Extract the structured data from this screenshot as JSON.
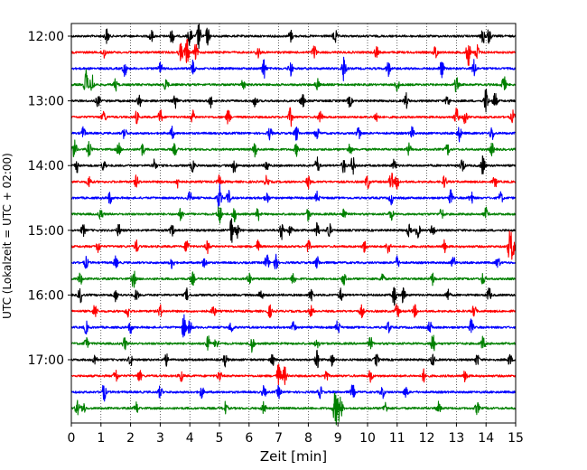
{
  "chart_data": {
    "type": "line",
    "title": "",
    "xlabel": "Zeit  [min]",
    "ylabel": "UTC (Lokalzeit = UTC + 02:00)",
    "xlim": [
      0,
      15
    ],
    "x_ticks": [
      "0",
      "1",
      "2",
      "3",
      "4",
      "5",
      "6",
      "7",
      "8",
      "9",
      "10",
      "11",
      "12",
      "13",
      "14",
      "15"
    ],
    "y_ticks": [
      "12:00",
      "13:00",
      "14:00",
      "15:00",
      "16:00",
      "17:00"
    ],
    "grid_x": true,
    "trace_interval_min": 15,
    "start_time": "12:00",
    "trace_colors": [
      "#000000",
      "#ff0000",
      "#0000ff",
      "#008000"
    ],
    "traces": [
      {
        "time": "12:00",
        "color": "#000000",
        "events": [
          [
            1.2,
            0.5
          ],
          [
            2.7,
            0.4
          ],
          [
            3.4,
            0.5
          ],
          [
            4.0,
            0.6
          ],
          [
            4.3,
            0.9
          ],
          [
            4.6,
            0.6
          ],
          [
            7.4,
            0.4
          ],
          [
            8.9,
            0.5
          ],
          [
            13.9,
            0.5
          ],
          [
            14.1,
            0.5
          ]
        ]
      },
      {
        "time": "12:15",
        "color": "#ff0000",
        "events": [
          [
            1.1,
            0.4
          ],
          [
            3.7,
            0.6
          ],
          [
            3.9,
            1.0
          ],
          [
            4.2,
            0.5
          ],
          [
            6.3,
            0.4
          ],
          [
            8.2,
            0.5
          ],
          [
            10.3,
            0.4
          ],
          [
            12.3,
            0.5
          ],
          [
            13.4,
            0.9
          ],
          [
            13.7,
            0.5
          ]
        ]
      },
      {
        "time": "12:30",
        "color": "#0000ff",
        "events": [
          [
            1.8,
            0.5
          ],
          [
            3.0,
            0.4
          ],
          [
            4.1,
            0.5
          ],
          [
            6.5,
            0.7
          ],
          [
            7.4,
            0.5
          ],
          [
            9.2,
            0.9
          ],
          [
            10.7,
            0.5
          ],
          [
            12.5,
            0.6
          ],
          [
            13.6,
            0.6
          ]
        ]
      },
      {
        "time": "12:45",
        "color": "#008000",
        "events": [
          [
            0.5,
            1.0
          ],
          [
            0.7,
            0.7
          ],
          [
            1.5,
            0.4
          ],
          [
            3.2,
            0.4
          ],
          [
            5.8,
            0.4
          ],
          [
            8.3,
            0.4
          ],
          [
            11.0,
            0.4
          ],
          [
            13.0,
            0.5
          ],
          [
            14.6,
            0.6
          ]
        ]
      },
      {
        "time": "13:00",
        "color": "#000000",
        "events": [
          [
            0.9,
            0.4
          ],
          [
            2.3,
            0.4
          ],
          [
            3.5,
            0.5
          ],
          [
            4.7,
            0.4
          ],
          [
            6.2,
            0.4
          ],
          [
            7.8,
            0.5
          ],
          [
            9.4,
            0.4
          ],
          [
            11.3,
            0.5
          ],
          [
            12.7,
            0.4
          ],
          [
            14.0,
            0.9
          ],
          [
            14.3,
            0.6
          ]
        ]
      },
      {
        "time": "13:15",
        "color": "#ff0000",
        "events": [
          [
            1.1,
            0.4
          ],
          [
            2.2,
            0.4
          ],
          [
            3.0,
            0.5
          ],
          [
            4.1,
            0.4
          ],
          [
            5.3,
            0.5
          ],
          [
            7.4,
            0.6
          ],
          [
            8.4,
            0.5
          ],
          [
            10.3,
            0.4
          ],
          [
            13.0,
            0.6
          ],
          [
            13.3,
            0.5
          ],
          [
            14.9,
            0.4
          ]
        ]
      },
      {
        "time": "13:30",
        "color": "#0000ff",
        "events": [
          [
            0.4,
            0.4
          ],
          [
            1.8,
            0.4
          ],
          [
            3.4,
            0.4
          ],
          [
            6.7,
            0.4
          ],
          [
            7.6,
            0.5
          ],
          [
            8.3,
            0.4
          ],
          [
            9.7,
            0.5
          ],
          [
            11.5,
            0.4
          ],
          [
            13.1,
            0.5
          ],
          [
            14.2,
            0.5
          ]
        ]
      },
      {
        "time": "13:45",
        "color": "#008000",
        "events": [
          [
            0.1,
            0.8
          ],
          [
            0.6,
            0.5
          ],
          [
            1.6,
            0.4
          ],
          [
            2.4,
            0.4
          ],
          [
            3.5,
            0.4
          ],
          [
            6.2,
            0.5
          ],
          [
            7.6,
            0.4
          ],
          [
            9.4,
            0.4
          ],
          [
            11.4,
            0.4
          ],
          [
            12.7,
            0.4
          ],
          [
            14.2,
            0.4
          ]
        ]
      },
      {
        "time": "14:00",
        "color": "#000000",
        "events": [
          [
            0.2,
            0.4
          ],
          [
            1.1,
            0.4
          ],
          [
            2.8,
            0.4
          ],
          [
            4.1,
            0.4
          ],
          [
            5.5,
            0.5
          ],
          [
            6.6,
            0.4
          ],
          [
            8.3,
            0.6
          ],
          [
            9.2,
            0.5
          ],
          [
            9.5,
            0.6
          ],
          [
            10.9,
            0.4
          ],
          [
            13.2,
            0.5
          ],
          [
            13.9,
            0.7
          ]
        ]
      },
      {
        "time": "14:15",
        "color": "#ff0000",
        "events": [
          [
            0.6,
            0.4
          ],
          [
            2.2,
            0.4
          ],
          [
            3.6,
            0.4
          ],
          [
            5.0,
            0.4
          ],
          [
            6.6,
            0.4
          ],
          [
            8.0,
            0.4
          ],
          [
            10.0,
            0.5
          ],
          [
            10.8,
            0.6
          ],
          [
            11.0,
            0.5
          ],
          [
            12.6,
            0.4
          ],
          [
            14.3,
            0.4
          ]
        ]
      },
      {
        "time": "14:30",
        "color": "#0000ff",
        "events": [
          [
            1.3,
            0.4
          ],
          [
            4.0,
            0.4
          ],
          [
            5.0,
            0.9
          ],
          [
            5.3,
            0.5
          ],
          [
            6.6,
            0.4
          ],
          [
            8.3,
            0.4
          ],
          [
            10.8,
            0.4
          ],
          [
            12.8,
            0.5
          ],
          [
            13.5,
            0.4
          ],
          [
            14.5,
            0.4
          ]
        ]
      },
      {
        "time": "14:45",
        "color": "#008000",
        "events": [
          [
            1.0,
            0.4
          ],
          [
            3.7,
            0.4
          ],
          [
            5.0,
            0.7
          ],
          [
            5.5,
            0.5
          ],
          [
            6.3,
            0.4
          ],
          [
            8.0,
            0.4
          ],
          [
            9.2,
            0.4
          ],
          [
            10.8,
            0.4
          ],
          [
            12.5,
            0.4
          ],
          [
            14.0,
            0.4
          ]
        ]
      },
      {
        "time": "15:00",
        "color": "#000000",
        "events": [
          [
            0.4,
            0.4
          ],
          [
            1.6,
            0.4
          ],
          [
            3.4,
            0.4
          ],
          [
            5.4,
            0.9
          ],
          [
            5.6,
            0.5
          ],
          [
            7.1,
            0.6
          ],
          [
            7.4,
            0.4
          ],
          [
            8.3,
            0.5
          ],
          [
            8.7,
            0.6
          ],
          [
            11.4,
            0.4
          ],
          [
            11.7,
            0.5
          ],
          [
            12.2,
            0.4
          ]
        ]
      },
      {
        "time": "15:15",
        "color": "#ff0000",
        "events": [
          [
            0.9,
            0.4
          ],
          [
            2.2,
            0.4
          ],
          [
            3.9,
            0.5
          ],
          [
            4.6,
            0.4
          ],
          [
            6.3,
            0.4
          ],
          [
            8.0,
            0.4
          ],
          [
            9.9,
            0.4
          ],
          [
            10.7,
            0.5
          ],
          [
            12.6,
            0.4
          ],
          [
            14.8,
            1.0
          ],
          [
            14.9,
            0.8
          ]
        ]
      },
      {
        "time": "15:30",
        "color": "#0000ff",
        "events": [
          [
            0.5,
            0.4
          ],
          [
            1.5,
            0.4
          ],
          [
            3.4,
            0.4
          ],
          [
            4.5,
            0.4
          ],
          [
            6.6,
            0.6
          ],
          [
            6.9,
            0.5
          ],
          [
            8.3,
            0.4
          ],
          [
            11.0,
            0.4
          ],
          [
            12.9,
            0.4
          ],
          [
            14.4,
            0.4
          ]
        ]
      },
      {
        "time": "15:45",
        "color": "#008000",
        "events": [
          [
            0.3,
            0.4
          ],
          [
            2.1,
            0.6
          ],
          [
            4.1,
            0.4
          ],
          [
            6.0,
            0.4
          ],
          [
            7.5,
            0.4
          ],
          [
            9.2,
            0.4
          ],
          [
            10.5,
            0.4
          ],
          [
            12.2,
            0.4
          ],
          [
            13.9,
            0.4
          ]
        ]
      },
      {
        "time": "16:00",
        "color": "#000000",
        "events": [
          [
            0.3,
            0.5
          ],
          [
            1.5,
            0.4
          ],
          [
            2.2,
            0.4
          ],
          [
            3.9,
            0.4
          ],
          [
            6.4,
            0.4
          ],
          [
            8.1,
            0.4
          ],
          [
            9.1,
            0.4
          ],
          [
            10.9,
            0.7
          ],
          [
            11.2,
            0.5
          ],
          [
            12.7,
            0.4
          ],
          [
            14.1,
            0.5
          ]
        ]
      },
      {
        "time": "16:15",
        "color": "#ff0000",
        "events": [
          [
            0.8,
            0.5
          ],
          [
            1.9,
            0.4
          ],
          [
            3.0,
            0.4
          ],
          [
            4.8,
            0.4
          ],
          [
            6.7,
            0.4
          ],
          [
            8.1,
            0.4
          ],
          [
            9.8,
            0.4
          ],
          [
            11.0,
            0.5
          ],
          [
            11.6,
            0.4
          ],
          [
            13.6,
            0.4
          ]
        ]
      },
      {
        "time": "16:30",
        "color": "#0000ff",
        "events": [
          [
            0.5,
            0.4
          ],
          [
            2.0,
            0.4
          ],
          [
            3.8,
            0.8
          ],
          [
            4.0,
            0.5
          ],
          [
            5.4,
            0.4
          ],
          [
            7.5,
            0.4
          ],
          [
            9.0,
            0.5
          ],
          [
            10.7,
            0.4
          ],
          [
            12.1,
            0.4
          ],
          [
            13.5,
            0.5
          ]
        ]
      },
      {
        "time": "16:45",
        "color": "#008000",
        "events": [
          [
            0.5,
            0.4
          ],
          [
            1.8,
            0.4
          ],
          [
            4.6,
            0.7
          ],
          [
            4.9,
            0.4
          ],
          [
            6.1,
            0.6
          ],
          [
            8.3,
            0.4
          ],
          [
            10.1,
            0.4
          ],
          [
            12.2,
            0.8
          ],
          [
            13.9,
            0.5
          ]
        ]
      },
      {
        "time": "17:00",
        "color": "#000000",
        "events": [
          [
            0.8,
            0.4
          ],
          [
            2.0,
            0.4
          ],
          [
            3.2,
            0.4
          ],
          [
            5.2,
            0.4
          ],
          [
            6.8,
            0.4
          ],
          [
            8.3,
            0.6
          ],
          [
            8.8,
            0.4
          ],
          [
            10.3,
            0.4
          ],
          [
            12.2,
            0.4
          ],
          [
            13.7,
            0.4
          ],
          [
            14.8,
            0.4
          ]
        ]
      },
      {
        "time": "17:15",
        "color": "#ff0000",
        "events": [
          [
            1.5,
            0.5
          ],
          [
            2.3,
            0.4
          ],
          [
            3.7,
            0.4
          ],
          [
            5.0,
            0.4
          ],
          [
            7.0,
            0.9
          ],
          [
            7.2,
            0.6
          ],
          [
            8.6,
            0.4
          ],
          [
            10.1,
            0.4
          ],
          [
            11.9,
            0.4
          ],
          [
            13.3,
            0.4
          ]
        ]
      },
      {
        "time": "17:30",
        "color": "#0000ff",
        "events": [
          [
            1.1,
            0.6
          ],
          [
            3.0,
            0.4
          ],
          [
            4.4,
            0.4
          ],
          [
            6.5,
            0.4
          ],
          [
            7.0,
            0.4
          ],
          [
            8.4,
            0.4
          ],
          [
            9.5,
            0.5
          ],
          [
            10.5,
            0.4
          ],
          [
            11.3,
            0.4
          ]
        ]
      },
      {
        "time": "17:45",
        "color": "#008000",
        "events": [
          [
            0.2,
            0.5
          ],
          [
            0.4,
            0.4
          ],
          [
            2.2,
            0.4
          ],
          [
            5.2,
            0.4
          ],
          [
            6.5,
            0.4
          ],
          [
            8.9,
            1.0
          ],
          [
            9.0,
            0.9
          ],
          [
            9.1,
            0.6
          ],
          [
            10.6,
            0.4
          ],
          [
            12.4,
            0.4
          ],
          [
            13.7,
            0.4
          ]
        ]
      }
    ]
  }
}
